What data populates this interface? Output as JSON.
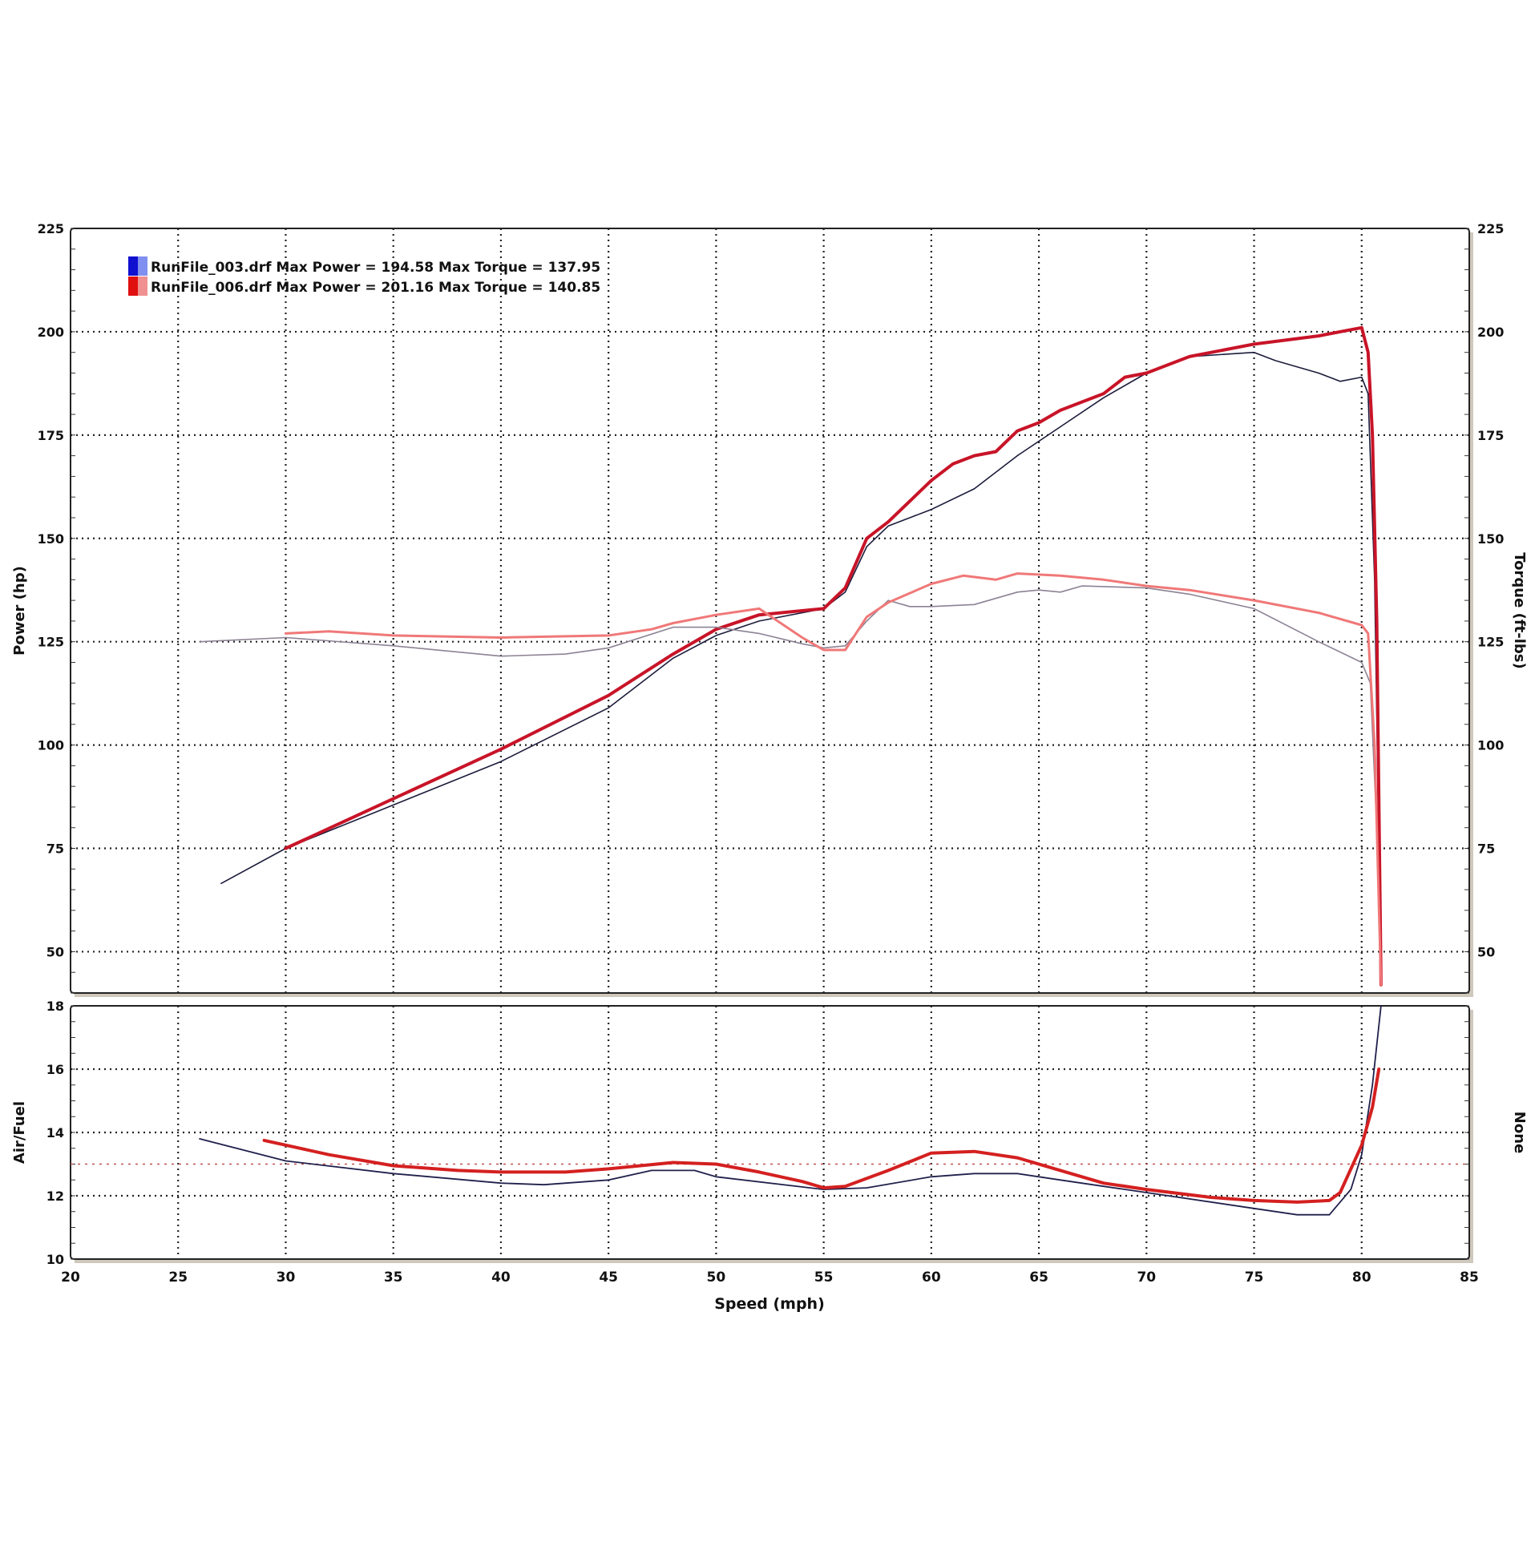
{
  "legend": [
    {
      "file": "RunFile_003.drf",
      "text": "RunFile_003.drf Max Power = 194.58 Max Torque = 137.95",
      "colors": [
        "#1010d0",
        "#8090f0"
      ]
    },
    {
      "file": "RunFile_006.drf",
      "text": "RunFile_006.drf Max Power = 201.16 Max Torque = 140.85",
      "colors": [
        "#e01010",
        "#f09090"
      ]
    }
  ],
  "chart_data": [
    {
      "type": "line",
      "panel": "upper",
      "xlabel": "Speed (mph)",
      "ylabel": "Power (hp)",
      "y2label": "Torque (ft-lbs)",
      "xlim": [
        20,
        85
      ],
      "ylim": [
        40,
        225
      ],
      "xticks": [
        "20",
        "25",
        "30",
        "35",
        "40",
        "45",
        "50",
        "55",
        "60",
        "65",
        "70",
        "75",
        "80",
        "85"
      ],
      "yticks": [
        "50",
        "75",
        "100",
        "125",
        "150",
        "175",
        "200",
        "225"
      ],
      "grid": true,
      "legend_position": "top-left",
      "series": [
        {
          "name": "RunFile_003.drf",
          "measure": "power",
          "color": "#1c1c3c",
          "width": 1.6,
          "x": [
            27,
            30,
            35,
            40,
            45,
            48,
            50,
            52,
            55,
            56,
            57,
            58,
            59,
            60,
            62,
            64,
            66,
            68,
            70,
            72,
            75,
            76,
            78,
            79,
            80,
            80.3,
            80.6,
            80.9
          ],
          "y": [
            66.5,
            75,
            85.5,
            96,
            109,
            121,
            126.5,
            130,
            133,
            137,
            148,
            153,
            155,
            157,
            162,
            170,
            177,
            184,
            190,
            194,
            195,
            193,
            190,
            188,
            189,
            185,
            140,
            42
          ]
        },
        {
          "name": "RunFile_006.drf",
          "measure": "power",
          "color": "#c81428",
          "width": 4,
          "x": [
            30,
            35,
            40,
            45,
            48,
            50,
            52,
            55,
            56,
            57,
            58,
            60,
            61,
            62,
            63,
            64,
            65,
            66,
            68,
            69,
            70,
            72,
            75,
            78,
            80,
            80.3,
            80.5,
            80.7,
            80.9
          ],
          "y": [
            75,
            87,
            99,
            112,
            122,
            128,
            131.5,
            133,
            138,
            150,
            154,
            164,
            168,
            170,
            171,
            176,
            178,
            181,
            185,
            189,
            190,
            194,
            197,
            199,
            201,
            195,
            175,
            130,
            42
          ]
        },
        {
          "name": "RunFile_003.drf",
          "measure": "torque",
          "color": "#8c8294",
          "width": 1.6,
          "x": [
            26,
            30,
            35,
            40,
            43,
            45,
            48,
            50,
            52,
            54,
            55,
            56,
            57,
            58,
            59,
            60,
            62,
            64,
            65,
            66,
            67,
            70,
            72,
            75,
            78,
            80,
            80.4,
            80.7,
            80.9
          ],
          "y": [
            125,
            126,
            124,
            121.5,
            122,
            123.5,
            128.5,
            128.5,
            127,
            124.5,
            123.5,
            124,
            130,
            135,
            133.5,
            133.5,
            134,
            137,
            137.5,
            137,
            138.5,
            138,
            136.5,
            133,
            125,
            120,
            115,
            80,
            42
          ]
        },
        {
          "name": "RunFile_006.drf",
          "measure": "torque",
          "color": "#f07878",
          "width": 3,
          "x": [
            30,
            32,
            35,
            40,
            45,
            47,
            48,
            50,
            52,
            54,
            55,
            56,
            57,
            58,
            60,
            61.5,
            63,
            64,
            66,
            68,
            70,
            72,
            75,
            78,
            80,
            80.3,
            80.6,
            80.9
          ],
          "y": [
            127,
            127.5,
            126.5,
            126,
            126.5,
            128,
            129.5,
            131.5,
            133,
            126,
            123,
            123,
            131,
            134.5,
            139,
            141,
            140,
            141.5,
            141,
            140,
            138.5,
            137.5,
            135,
            132,
            129,
            127,
            100,
            42
          ]
        }
      ]
    },
    {
      "type": "line",
      "panel": "lower",
      "xlabel": "Speed (mph)",
      "ylabel": "Air/Fuel",
      "y2label": "None",
      "xlim": [
        20,
        85
      ],
      "ylim": [
        10,
        18
      ],
      "yticks": [
        "10",
        "12",
        "14",
        "16",
        "18"
      ],
      "grid": true,
      "reference_line": {
        "y": 13.0,
        "color": "#c05050"
      },
      "series": [
        {
          "name": "RunFile_003.drf",
          "measure": "air/fuel",
          "color": "#20204c",
          "width": 1.8,
          "x": [
            26,
            30,
            35,
            40,
            42,
            45,
            47,
            49,
            50,
            55,
            57,
            60,
            62,
            64,
            66,
            70,
            75,
            77,
            78.5,
            79.5,
            80,
            80.5,
            80.9
          ],
          "y": [
            13.8,
            13.1,
            12.7,
            12.4,
            12.35,
            12.5,
            12.8,
            12.8,
            12.6,
            12.2,
            12.25,
            12.6,
            12.7,
            12.7,
            12.5,
            12.1,
            11.6,
            11.4,
            11.4,
            12.2,
            13.3,
            15.5,
            18
          ]
        },
        {
          "name": "RunFile_006.drf",
          "measure": "air/fuel",
          "color": "#d42020",
          "width": 4,
          "x": [
            29,
            32,
            35,
            38,
            40,
            43,
            45,
            48,
            50,
            52,
            54,
            55,
            56,
            58,
            60,
            62,
            64,
            66,
            68,
            70,
            73,
            75,
            77,
            78.5,
            79,
            80,
            80.5,
            80.8
          ],
          "y": [
            13.75,
            13.3,
            12.95,
            12.8,
            12.75,
            12.75,
            12.85,
            13.05,
            13.0,
            12.75,
            12.45,
            12.25,
            12.3,
            12.8,
            13.35,
            13.4,
            13.2,
            12.8,
            12.4,
            12.2,
            11.95,
            11.85,
            11.8,
            11.85,
            12.1,
            13.6,
            14.8,
            16
          ]
        }
      ]
    }
  ]
}
